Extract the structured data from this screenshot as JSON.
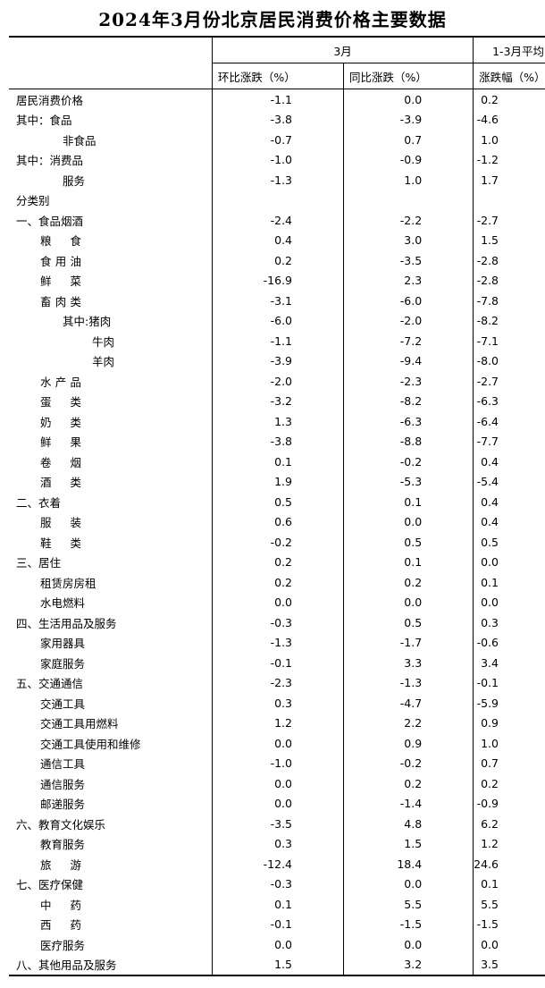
{
  "title": "2024年3月份北京居民消费价格主要数据",
  "header": {
    "group1": "3月",
    "group2": "1-3月平均",
    "col1": "环比涨跌（%）",
    "col2": "同比涨跌（%）",
    "col3": "涨跌幅（%）"
  },
  "rows": [
    {
      "label": "居民消费价格",
      "level": 0,
      "mom": "-1.1",
      "yoy": "0.0",
      "avg": "0.2"
    },
    {
      "label": "其中：食品",
      "level": 0,
      "mom": "-3.8",
      "yoy": "-3.9",
      "avg": "-4.6"
    },
    {
      "label": "非食品",
      "level": 3,
      "mom": "-0.7",
      "yoy": "0.7",
      "avg": "1.0"
    },
    {
      "label": "其中：消费品",
      "level": 0,
      "mom": "-1.0",
      "yoy": "-0.9",
      "avg": "-1.2"
    },
    {
      "label": "服务",
      "level": 3,
      "mom": "-1.3",
      "yoy": "1.0",
      "avg": "1.7"
    },
    {
      "label": "分类别",
      "level": 0,
      "mom": "",
      "yoy": "",
      "avg": ""
    },
    {
      "label": "一、食品烟酒",
      "level": 0,
      "mom": "-2.4",
      "yoy": "-2.2",
      "avg": "-2.7"
    },
    {
      "label": "粮食",
      "level": 1,
      "spaced": true,
      "mom": "0.4",
      "yoy": "3.0",
      "avg": "1.5"
    },
    {
      "label": "食用油",
      "level": 1,
      "spaced": true,
      "mom": "0.2",
      "yoy": "-3.5",
      "avg": "-2.8"
    },
    {
      "label": "鲜菜",
      "level": 1,
      "spaced": true,
      "mom": "-16.9",
      "yoy": "2.3",
      "avg": "-2.8"
    },
    {
      "label": "畜肉类",
      "level": 1,
      "spaced": true,
      "mom": "-3.1",
      "yoy": "-6.0",
      "avg": "-7.8"
    },
    {
      "label": "其中:猪肉",
      "level": 2,
      "mom": "-6.0",
      "yoy": "-2.0",
      "avg": "-8.2"
    },
    {
      "label": "牛肉",
      "level": 4,
      "mom": "-1.1",
      "yoy": "-7.2",
      "avg": "-7.1"
    },
    {
      "label": "羊肉",
      "level": 4,
      "mom": "-3.9",
      "yoy": "-9.4",
      "avg": "-8.0"
    },
    {
      "label": "水产品",
      "level": 1,
      "spaced": true,
      "mom": "-2.0",
      "yoy": "-2.3",
      "avg": "-2.7"
    },
    {
      "label": "蛋类",
      "level": 1,
      "spaced": true,
      "mom": "-3.2",
      "yoy": "-8.2",
      "avg": "-6.3"
    },
    {
      "label": "奶类",
      "level": 1,
      "spaced": true,
      "mom": "1.3",
      "yoy": "-6.3",
      "avg": "-6.4"
    },
    {
      "label": "鲜果",
      "level": 1,
      "spaced": true,
      "mom": "-3.8",
      "yoy": "-8.8",
      "avg": "-7.7"
    },
    {
      "label": "卷烟",
      "level": 1,
      "spaced": true,
      "mom": "0.1",
      "yoy": "-0.2",
      "avg": "0.4"
    },
    {
      "label": "酒类",
      "level": 1,
      "spaced": true,
      "mom": "1.9",
      "yoy": "-5.3",
      "avg": "-5.4"
    },
    {
      "label": "二、衣着",
      "level": 0,
      "mom": "0.5",
      "yoy": "0.1",
      "avg": "0.4"
    },
    {
      "label": "服装",
      "level": 1,
      "spaced": true,
      "mom": "0.6",
      "yoy": "0.0",
      "avg": "0.4"
    },
    {
      "label": "鞋类",
      "level": 1,
      "spaced": true,
      "mom": "-0.2",
      "yoy": "0.5",
      "avg": "0.5"
    },
    {
      "label": "三、居住",
      "level": 0,
      "mom": "0.2",
      "yoy": "0.1",
      "avg": "0.0"
    },
    {
      "label": "租赁房房租",
      "level": 1,
      "mom": "0.2",
      "yoy": "0.2",
      "avg": "0.1"
    },
    {
      "label": "水电燃料",
      "level": 1,
      "mom": "0.0",
      "yoy": "0.0",
      "avg": "0.0"
    },
    {
      "label": "四、生活用品及服务",
      "level": 0,
      "mom": "-0.3",
      "yoy": "0.5",
      "avg": "0.3"
    },
    {
      "label": "家用器具",
      "level": 1,
      "mom": "-1.3",
      "yoy": "-1.7",
      "avg": "-0.6"
    },
    {
      "label": "家庭服务",
      "level": 1,
      "mom": "-0.1",
      "yoy": "3.3",
      "avg": "3.4"
    },
    {
      "label": "五、交通通信",
      "level": 0,
      "mom": "-2.3",
      "yoy": "-1.3",
      "avg": "-0.1"
    },
    {
      "label": "交通工具",
      "level": 1,
      "mom": "0.3",
      "yoy": "-4.7",
      "avg": "-5.9"
    },
    {
      "label": "交通工具用燃料",
      "level": 1,
      "mom": "1.2",
      "yoy": "2.2",
      "avg": "0.9"
    },
    {
      "label": "交通工具使用和维修",
      "level": 1,
      "mom": "0.0",
      "yoy": "0.9",
      "avg": "1.0"
    },
    {
      "label": "通信工具",
      "level": 1,
      "mom": "-1.0",
      "yoy": "-0.2",
      "avg": "0.7"
    },
    {
      "label": "通信服务",
      "level": 1,
      "mom": "0.0",
      "yoy": "0.2",
      "avg": "0.2"
    },
    {
      "label": "邮递服务",
      "level": 1,
      "mom": "0.0",
      "yoy": "-1.4",
      "avg": "-0.9"
    },
    {
      "label": "六、教育文化娱乐",
      "level": 0,
      "mom": "-3.5",
      "yoy": "4.8",
      "avg": "6.2"
    },
    {
      "label": "教育服务",
      "level": 1,
      "mom": "0.3",
      "yoy": "1.5",
      "avg": "1.2"
    },
    {
      "label": "旅游",
      "level": 1,
      "spaced": true,
      "mom": "-12.4",
      "yoy": "18.4",
      "avg": "24.6"
    },
    {
      "label": "七、医疗保健",
      "level": 0,
      "mom": "-0.3",
      "yoy": "0.0",
      "avg": "0.1"
    },
    {
      "label": "中药",
      "level": 1,
      "spaced": true,
      "mom": "0.1",
      "yoy": "5.5",
      "avg": "5.5"
    },
    {
      "label": "西药",
      "level": 1,
      "spaced": true,
      "mom": "-0.1",
      "yoy": "-1.5",
      "avg": "-1.5"
    },
    {
      "label": "医疗服务",
      "level": 1,
      "mom": "0.0",
      "yoy": "0.0",
      "avg": "0.0"
    },
    {
      "label": "八、其他用品及服务",
      "level": 0,
      "mom": "1.5",
      "yoy": "3.2",
      "avg": "3.5"
    }
  ]
}
